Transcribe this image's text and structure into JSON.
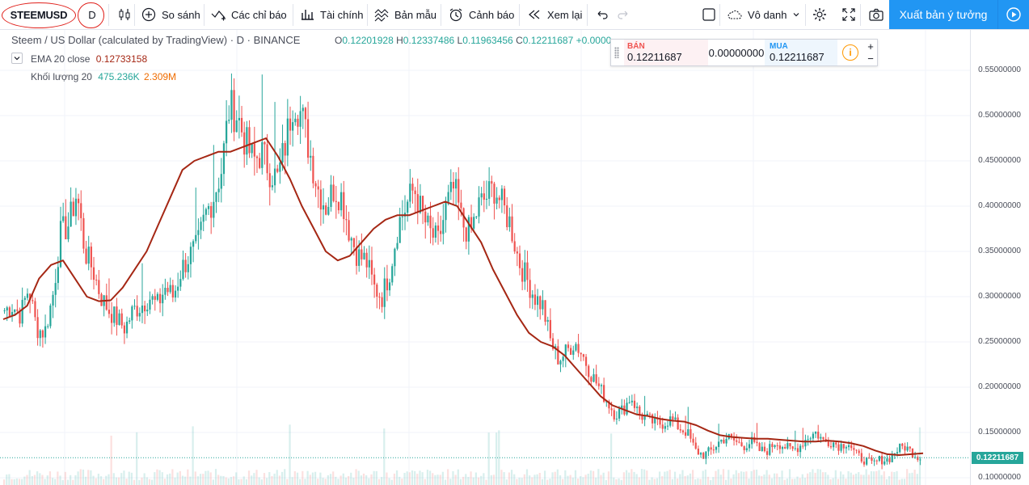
{
  "toolbar": {
    "symbol": "STEEMUSD",
    "interval": "D",
    "compare": "So sánh",
    "indicators": "Các chỉ báo",
    "financials": "Tài chính",
    "templates": "Bản mẫu",
    "alerts": "Cảnh báo",
    "replay": "Xem lại",
    "layout_name": "Vô danh",
    "publish": "Xuất bản ý tưởng"
  },
  "legend": {
    "title": "Steem / US Dollar (calculated by TradingView) · D · BINANCE",
    "ohlc": {
      "o_key": "O",
      "o": "0.12201928",
      "h_key": "H",
      "h": "0.12337486",
      "l_key": "L",
      "l": "0.11963456",
      "c_key": "C",
      "c": "0.12211687",
      "change": "+0.0000"
    },
    "ema_label": "EMA 20 close",
    "ema_value": "0.12733158",
    "volume_label": "Khối lượng 20",
    "volume_value": "475.236K",
    "volume_ma": "2.309M"
  },
  "trade_panel": {
    "sell_label": "BÁN",
    "sell_price": "0.12211687",
    "spread": "0.00000000",
    "buy_label": "MUA",
    "buy_price": "0.12211687",
    "plus": "+",
    "minus": "−"
  },
  "price_axis": {
    "ticks": [
      "0.55000000",
      "0.50000000",
      "0.45000000",
      "0.40000000",
      "0.35000000",
      "0.30000000",
      "0.25000000",
      "0.20000000",
      "0.15000000",
      "0.10000000"
    ],
    "last_price": "0.12211687"
  },
  "colors": {
    "up": "#26a69a",
    "down": "#ef5350",
    "ema": "#a52714",
    "accent": "#2196f3",
    "annotation": "#e0201b"
  },
  "chart_data": {
    "type": "candlestick",
    "title": "Steem / US Dollar (calculated by TradingView) · D · BINANCE",
    "ylim": [
      0.093,
      0.594
    ],
    "y_ticks": [
      0.55,
      0.5,
      0.45,
      0.4,
      0.35,
      0.3,
      0.25,
      0.2,
      0.15,
      0.1
    ],
    "last_close": 0.12211687,
    "price_path": [
      0.285,
      0.29,
      0.28,
      0.31,
      0.265,
      0.26,
      0.3,
      0.37,
      0.38,
      0.415,
      0.35,
      0.33,
      0.3,
      0.285,
      0.275,
      0.265,
      0.285,
      0.29,
      0.3,
      0.29,
      0.31,
      0.3,
      0.33,
      0.345,
      0.355,
      0.39,
      0.41,
      0.44,
      0.51,
      0.5,
      0.47,
      0.45,
      0.46,
      0.44,
      0.43,
      0.47,
      0.52,
      0.5,
      0.46,
      0.42,
      0.4,
      0.42,
      0.41,
      0.37,
      0.345,
      0.34,
      0.31,
      0.3,
      0.33,
      0.38,
      0.4,
      0.42,
      0.39,
      0.37,
      0.36,
      0.4,
      0.42,
      0.38,
      0.37,
      0.4,
      0.41,
      0.42,
      0.4,
      0.38,
      0.34,
      0.32,
      0.3,
      0.29,
      0.25,
      0.23,
      0.24,
      0.25,
      0.235,
      0.215,
      0.2,
      0.185,
      0.17,
      0.175,
      0.19,
      0.17,
      0.165,
      0.16,
      0.16,
      0.165,
      0.155,
      0.15,
      0.13,
      0.125,
      0.13,
      0.14,
      0.145,
      0.14,
      0.135,
      0.14,
      0.13,
      0.13,
      0.14,
      0.135,
      0.13,
      0.135,
      0.145,
      0.15,
      0.14,
      0.14,
      0.135,
      0.14,
      0.125,
      0.12,
      0.115,
      0.12,
      0.12,
      0.13,
      0.135,
      0.128,
      0.122
    ],
    "ema_path": [
      0.275,
      0.28,
      0.29,
      0.32,
      0.335,
      0.34,
      0.32,
      0.3,
      0.295,
      0.296,
      0.31,
      0.33,
      0.35,
      0.38,
      0.41,
      0.44,
      0.45,
      0.455,
      0.46,
      0.46,
      0.465,
      0.47,
      0.475,
      0.455,
      0.43,
      0.4,
      0.375,
      0.35,
      0.34,
      0.345,
      0.36,
      0.375,
      0.385,
      0.39,
      0.39,
      0.395,
      0.4,
      0.405,
      0.4,
      0.38,
      0.36,
      0.33,
      0.305,
      0.28,
      0.26,
      0.25,
      0.245,
      0.235,
      0.22,
      0.205,
      0.19,
      0.18,
      0.175,
      0.17,
      0.168,
      0.165,
      0.163,
      0.162,
      0.158,
      0.152,
      0.147,
      0.145,
      0.144,
      0.143,
      0.143,
      0.142,
      0.141,
      0.14,
      0.14,
      0.141,
      0.14,
      0.138,
      0.135,
      0.13,
      0.126,
      0.125,
      0.126,
      0.127
    ],
    "ema_name": "EMA 20 close"
  }
}
